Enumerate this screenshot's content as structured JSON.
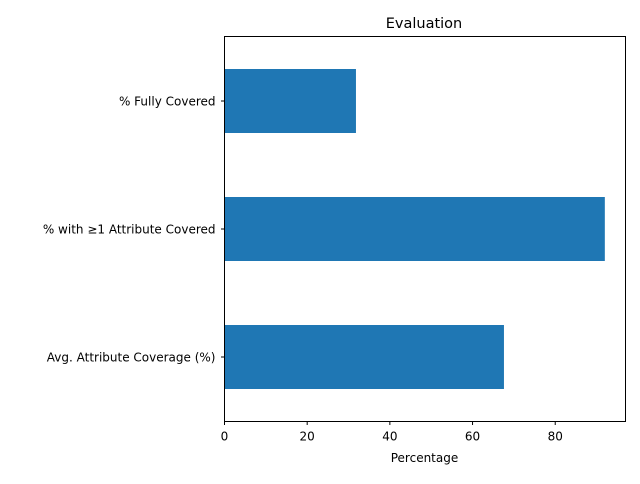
{
  "chart_data": {
    "type": "bar",
    "orientation": "horizontal",
    "title": "Evaluation",
    "xlabel": "Percentage",
    "ylabel": "",
    "categories": [
      "% Fully Covered",
      "% with ≥1 Attribute Covered",
      "Avg. Attribute Coverage (%)"
    ],
    "values": [
      31.8,
      92.0,
      67.6
    ],
    "xlim": [
      0,
      97.0
    ],
    "xticks": [
      0,
      20,
      40,
      60,
      80
    ],
    "grid": false,
    "legend": "none",
    "bar_color": "#1f77b4"
  }
}
